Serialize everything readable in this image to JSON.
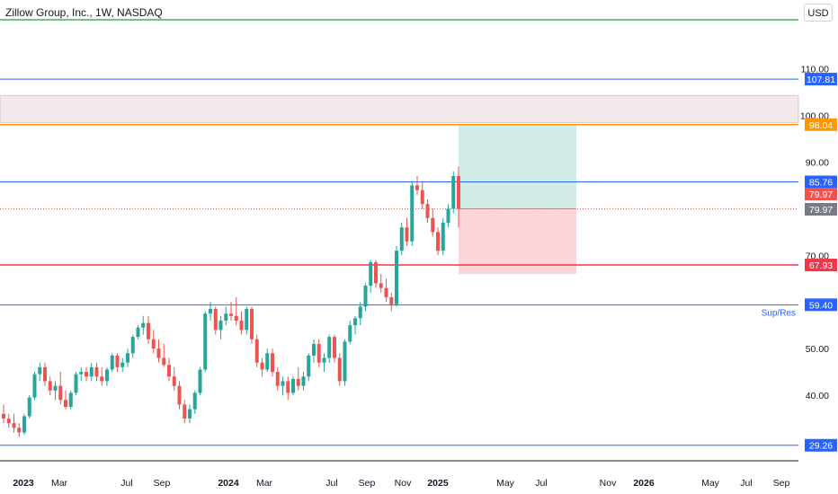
{
  "header": {
    "title": "Zillow Group, Inc., 1W, NASDAQ",
    "currency": "USD"
  },
  "colors": {
    "up": "#26a69a",
    "down": "#ef5350",
    "blue_line": "#2962ff",
    "red_line": "#f23645",
    "orange_line": "#ff9800",
    "green_line": "#4caf50",
    "profit_zone": "#d1ece6",
    "loss_zone": "#fbd5d8",
    "resistance_zone": "#f3e9ea"
  },
  "chart_data": {
    "type": "candlestick",
    "symbol": "Zillow Group, Inc., 1W, NASDAQ",
    "y_axis_ticks": [
      "40.00",
      "50.00",
      "60.00",
      "70.00",
      "80.00",
      "90.00",
      "100.00",
      "110.00"
    ],
    "x_axis_ticks": [
      "2023",
      "Mar",
      "Jul",
      "Sep",
      "2024",
      "Mar",
      "Jul",
      "Sep",
      "Nov",
      "2025",
      "May",
      "Jul",
      "Nov",
      "2026",
      "May",
      "Jul",
      "Sep"
    ],
    "ylim": [
      27,
      118
    ],
    "horizontal_levels": [
      {
        "value": 107.81,
        "label": "107.81",
        "color": "blue_line"
      },
      {
        "value": 98.04,
        "label": "98.04",
        "color": "orange_line"
      },
      {
        "value": 85.76,
        "label": "85.76",
        "color": "blue_line"
      },
      {
        "value": 79.97,
        "label": "79.97",
        "color": "down",
        "dotted": true
      },
      {
        "value": 67.93,
        "label": "67.93",
        "color": "red_line"
      },
      {
        "value": 59.4,
        "label": "59.40",
        "color": "blue_line",
        "annotation": "Sup/Res"
      },
      {
        "value": 29.26,
        "label": "29.26",
        "color": "blue_line"
      }
    ],
    "price_labels_extra": [
      {
        "value": 79.97,
        "label": "79.97",
        "style": "red"
      },
      {
        "value": 79.97,
        "label": "79.97",
        "style": "grey"
      }
    ],
    "resistance_zone": [
      98.5,
      104.3
    ],
    "position": {
      "entry": 79.97,
      "target": 98.04,
      "stop": 67.93
    },
    "candles": [
      [
        36,
        38,
        34,
        35
      ],
      [
        35,
        36,
        33,
        34
      ],
      [
        34,
        36,
        32,
        33
      ],
      [
        33,
        34,
        31,
        32
      ],
      [
        32,
        36,
        31.5,
        35.5
      ],
      [
        35.5,
        40,
        35,
        39.5
      ],
      [
        39.5,
        45,
        39,
        44.5
      ],
      [
        44.5,
        47,
        43,
        46
      ],
      [
        46,
        47,
        42,
        43
      ],
      [
        43,
        44,
        40,
        41
      ],
      [
        41,
        43,
        39,
        42
      ],
      [
        42,
        45,
        38,
        39
      ],
      [
        39,
        41,
        37,
        37.5
      ],
      [
        37.5,
        41,
        37,
        40.5
      ],
      [
        40.5,
        45,
        40,
        44.5
      ],
      [
        44.5,
        46,
        43,
        45
      ],
      [
        45,
        46,
        43,
        44
      ],
      [
        44,
        47,
        43,
        46
      ],
      [
        46,
        47,
        43,
        44
      ],
      [
        44,
        46,
        42,
        43
      ],
      [
        43,
        46,
        42,
        45.5
      ],
      [
        45.5,
        49,
        45,
        48.5
      ],
      [
        48.5,
        49,
        45,
        46
      ],
      [
        46,
        48,
        45,
        47
      ],
      [
        47,
        50,
        46,
        49
      ],
      [
        49,
        53,
        48,
        52.5
      ],
      [
        52.5,
        55,
        52,
        54.5
      ],
      [
        54.5,
        57,
        53,
        55.5
      ],
      [
        55.5,
        57,
        51,
        52
      ],
      [
        52,
        54,
        49,
        50
      ],
      [
        50,
        52,
        47,
        48
      ],
      [
        48,
        51,
        46,
        46.5
      ],
      [
        46.5,
        48,
        43,
        44
      ],
      [
        44,
        46,
        41,
        42
      ],
      [
        42,
        43,
        37,
        38
      ],
      [
        38,
        39,
        34,
        35
      ],
      [
        35,
        38,
        34,
        37
      ],
      [
        37,
        41,
        36,
        40.5
      ],
      [
        40.5,
        46,
        40,
        45.5
      ],
      [
        45.5,
        58,
        45,
        57.5
      ],
      [
        57.5,
        60,
        56,
        58.5
      ],
      [
        58.5,
        59,
        53,
        54
      ],
      [
        54,
        57,
        52,
        56
      ],
      [
        56,
        59,
        55,
        57.5
      ],
      [
        57.5,
        60,
        56,
        57
      ],
      [
        57,
        61,
        55,
        56
      ],
      [
        56,
        58,
        53,
        54
      ],
      [
        54,
        59,
        53,
        58.5
      ],
      [
        58.5,
        59,
        51,
        52
      ],
      [
        52,
        53,
        46,
        47
      ],
      [
        47,
        48,
        44,
        45.5
      ],
      [
        45.5,
        50,
        45,
        49
      ],
      [
        49,
        50,
        44,
        45
      ],
      [
        45,
        46,
        41,
        42
      ],
      [
        42,
        44,
        40,
        43
      ],
      [
        43,
        44,
        39,
        40.5
      ],
      [
        40.5,
        44,
        40,
        43.5
      ],
      [
        43.5,
        46,
        41,
        42
      ],
      [
        42,
        45,
        41,
        44
      ],
      [
        44,
        49,
        43,
        48.5
      ],
      [
        48.5,
        52,
        47,
        51
      ],
      [
        51,
        52,
        46,
        47
      ],
      [
        47,
        49,
        45,
        48
      ],
      [
        48,
        53,
        47,
        52.5
      ],
      [
        52.5,
        53,
        47,
        48
      ],
      [
        48,
        49,
        42,
        43
      ],
      [
        43,
        52,
        42,
        51.5
      ],
      [
        51.5,
        56,
        51,
        55
      ],
      [
        55,
        57,
        53,
        56.5
      ],
      [
        56.5,
        60,
        55,
        59
      ],
      [
        59,
        64,
        58,
        63.5
      ],
      [
        63.5,
        69,
        62,
        68.5
      ],
      [
        68.5,
        69,
        63,
        64
      ],
      [
        64,
        66,
        62,
        63
      ],
      [
        63,
        65,
        60,
        61
      ],
      [
        61,
        62,
        58,
        59.5
      ],
      [
        59.5,
        72,
        59,
        71
      ],
      [
        71,
        77,
        70,
        76
      ],
      [
        76,
        78,
        72,
        73
      ],
      [
        73,
        86,
        72,
        85
      ],
      [
        85,
        87,
        83,
        84
      ],
      [
        84,
        86,
        80,
        81
      ],
      [
        81,
        82,
        77,
        78
      ],
      [
        78,
        80,
        74,
        75
      ],
      [
        75,
        76,
        70,
        71
      ],
      [
        71,
        78,
        70,
        77
      ],
      [
        77,
        81,
        76,
        80
      ],
      [
        80,
        88,
        79,
        87
      ],
      [
        87,
        89,
        76,
        79.97
      ]
    ]
  }
}
